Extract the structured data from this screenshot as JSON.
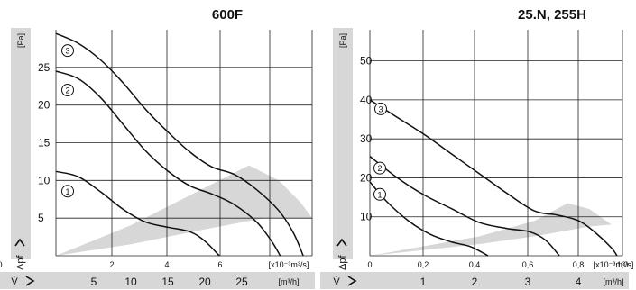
{
  "chart_data": [
    {
      "type": "line",
      "title": "600F",
      "x_unit": "[x10⁻³m³/s]",
      "x2_unit": "[m³/h]",
      "y_unit": "[Pa]",
      "y_symbol": "Δpf",
      "x2_symbol": "V̇",
      "xlim": [
        0,
        34.5
      ],
      "ylim": [
        0,
        30
      ],
      "x_ticks": [
        0,
        2,
        4,
        6
      ],
      "x_tick_labels": [
        "0",
        "2",
        "4",
        "6"
      ],
      "x2_ticks": [
        5,
        10,
        15,
        20,
        25
      ],
      "x2_tick_labels": [
        "5",
        "10",
        "15",
        "20",
        "25"
      ],
      "y_ticks": [
        5,
        10,
        15,
        20,
        25
      ],
      "y_tick_labels": [
        "5",
        "10",
        "15",
        "20",
        "25"
      ],
      "grid": true,
      "shaded_region": {
        "lower": [
          [
            0,
            0
          ],
          [
            10,
            1.5
          ],
          [
            20,
            3.5
          ],
          [
            28,
            5
          ],
          [
            34.5,
            5
          ]
        ],
        "upper": [
          [
            0,
            0
          ],
          [
            10,
            4
          ],
          [
            16,
            7
          ],
          [
            22,
            10
          ],
          [
            26,
            12
          ],
          [
            30,
            10
          ],
          [
            33,
            7
          ],
          [
            34.5,
            5
          ]
        ]
      },
      "series": [
        {
          "label": "1",
          "points": [
            [
              0,
              11.2
            ],
            [
              3,
              10.5
            ],
            [
              6,
              8.5
            ],
            [
              9,
              6.2
            ],
            [
              12,
              4.5
            ],
            [
              15,
              3.8
            ],
            [
              18,
              3.2
            ],
            [
              20,
              2
            ],
            [
              22,
              0
            ]
          ]
        },
        {
          "label": "2",
          "points": [
            [
              0,
              24.5
            ],
            [
              3,
              23.5
            ],
            [
              6,
              21
            ],
            [
              9,
              17.5
            ],
            [
              12,
              14
            ],
            [
              15,
              11.3
            ],
            [
              18,
              9.3
            ],
            [
              21,
              8.2
            ],
            [
              24,
              6.8
            ],
            [
              27,
              4.5
            ],
            [
              29,
              2
            ],
            [
              30.2,
              0
            ]
          ]
        },
        {
          "label": "3",
          "points": [
            [
              0,
              29.5
            ],
            [
              3,
              28.2
            ],
            [
              6,
              26
            ],
            [
              9,
              23
            ],
            [
              12,
              19.5
            ],
            [
              15,
              16.5
            ],
            [
              18,
              13.8
            ],
            [
              21,
              11.8
            ],
            [
              24,
              10.8
            ],
            [
              27,
              8.8
            ],
            [
              30,
              6
            ],
            [
              32,
              3
            ],
            [
              33.3,
              0
            ]
          ]
        }
      ]
    },
    {
      "type": "line",
      "title": "25.N, 255H",
      "x_unit": "[x10⁻³m³/s]",
      "x2_unit": "[m³/h]",
      "y_unit": "[Pa]",
      "y_symbol": "Δpf",
      "x2_symbol": "V̇",
      "xlim": [
        0,
        4.6
      ],
      "ylim": [
        0,
        58
      ],
      "x_ticks": [
        0.0,
        0.2,
        0.4,
        0.6,
        0.8,
        1.0
      ],
      "x_tick_labels": [
        "0",
        "0,2",
        "0,4",
        "0,6",
        "0,8",
        "1,0"
      ],
      "x2_ticks": [
        1,
        2,
        3,
        4
      ],
      "x2_tick_labels": [
        "1",
        "2",
        "3",
        "4"
      ],
      "y_ticks": [
        10,
        20,
        30,
        40,
        50
      ],
      "y_tick_labels": [
        "10",
        "20",
        "30",
        "40",
        "50"
      ],
      "grid": true,
      "shaded_region": {
        "lower": [
          [
            0,
            0
          ],
          [
            1,
            1.5
          ],
          [
            2,
            3
          ],
          [
            3,
            5
          ],
          [
            4,
            7.5
          ],
          [
            4.4,
            8
          ]
        ],
        "upper": [
          [
            0,
            0
          ],
          [
            1,
            2.5
          ],
          [
            2,
            5
          ],
          [
            3,
            9
          ],
          [
            3.6,
            13.5
          ],
          [
            4,
            12
          ],
          [
            4.4,
            8
          ]
        ]
      },
      "series": [
        {
          "label": "1",
          "points": [
            [
              0,
              19
            ],
            [
              0.3,
              14
            ],
            [
              0.7,
              9
            ],
            [
              1.1,
              5.5
            ],
            [
              1.5,
              3.5
            ],
            [
              1.8,
              2.5
            ],
            [
              2.0,
              1.2
            ],
            [
              2.15,
              0
            ]
          ]
        },
        {
          "label": "2",
          "points": [
            [
              0,
              25.5
            ],
            [
              0.5,
              20
            ],
            [
              1.0,
              15.5
            ],
            [
              1.5,
              12
            ],
            [
              2.0,
              8.5
            ],
            [
              2.5,
              7
            ],
            [
              2.9,
              6.2
            ],
            [
              3.2,
              4
            ],
            [
              3.45,
              0
            ]
          ]
        },
        {
          "label": "3",
          "points": [
            [
              0,
              40
            ],
            [
              0.5,
              35.5
            ],
            [
              1.0,
              31
            ],
            [
              1.5,
              26
            ],
            [
              2.0,
              21
            ],
            [
              2.5,
              16
            ],
            [
              3.0,
              11.5
            ],
            [
              3.4,
              10.5
            ],
            [
              3.8,
              9
            ],
            [
              4.1,
              6
            ],
            [
              4.4,
              2
            ],
            [
              4.5,
              0
            ]
          ]
        }
      ]
    }
  ]
}
